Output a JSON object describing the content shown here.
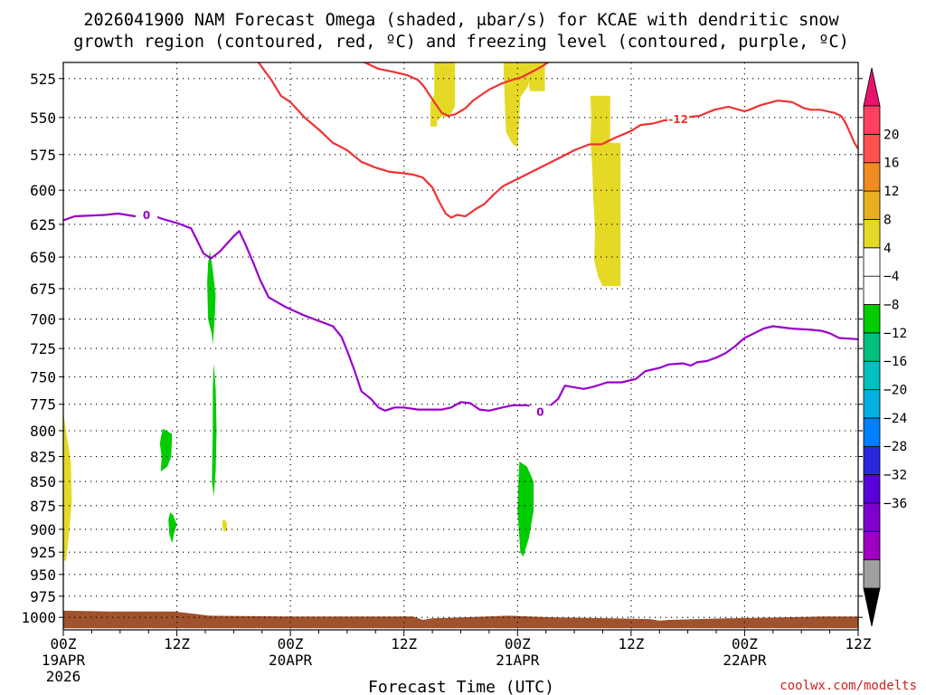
{
  "chart_data": {
    "type": "line",
    "title_line1": "2026041900 NAM Forecast Omega (shaded, μbar/s) for KCAE with dendritic snow",
    "title_line2": "growth region (contoured, red, ºC) and freezing level (contoured, purple, ºC)",
    "xlabel": "Forecast Time (UTC)",
    "credit": "coolwx.com/modelts",
    "x_range_hours": [
      0,
      84
    ],
    "y_range_mb": [
      515,
      1015
    ],
    "y_scale": "log-pressure",
    "grid": true,
    "y_ticks": [
      525,
      550,
      575,
      600,
      625,
      650,
      675,
      700,
      725,
      750,
      775,
      800,
      825,
      850,
      875,
      900,
      925,
      950,
      975,
      1000
    ],
    "x_ticks": [
      {
        "hour": 0,
        "label": "00Z",
        "date": "19APR",
        "year": "2026"
      },
      {
        "hour": 12,
        "label": "12Z",
        "date": "",
        "year": ""
      },
      {
        "hour": 24,
        "label": "00Z",
        "date": "20APR",
        "year": ""
      },
      {
        "hour": 36,
        "label": "12Z",
        "date": "",
        "year": ""
      },
      {
        "hour": 48,
        "label": "00Z",
        "date": "21APR",
        "year": ""
      },
      {
        "hour": 60,
        "label": "12Z",
        "date": "",
        "year": ""
      },
      {
        "hour": 72,
        "label": "00Z",
        "date": "22APR",
        "year": ""
      },
      {
        "hour": 84,
        "label": "12Z",
        "date": "",
        "year": ""
      }
    ],
    "series": [
      {
        "name": "0",
        "color": "#9900cc",
        "label_points": [
          {
            "x": 8.8,
            "y": 618
          },
          {
            "x": 50.4,
            "y": 782
          }
        ],
        "points": [
          [
            0,
            622
          ],
          [
            1.2,
            619
          ],
          [
            4.4,
            618
          ],
          [
            5.8,
            617
          ],
          [
            7.6,
            619
          ],
          [
            9.3,
            618
          ],
          [
            10.5,
            621
          ],
          [
            12,
            624
          ],
          [
            13.5,
            628
          ],
          [
            14.2,
            638
          ],
          [
            14.8,
            647
          ],
          [
            15.6,
            651
          ],
          [
            16.5,
            646
          ],
          [
            18,
            634
          ],
          [
            18.6,
            630
          ],
          [
            19.3,
            641
          ],
          [
            20,
            653
          ],
          [
            20.8,
            668
          ],
          [
            21.7,
            682
          ],
          [
            23.5,
            690
          ],
          [
            25.5,
            697
          ],
          [
            27.5,
            703
          ],
          [
            28.5,
            706
          ],
          [
            29.4,
            715
          ],
          [
            30,
            727
          ],
          [
            30.8,
            745
          ],
          [
            31.5,
            763
          ],
          [
            32.5,
            770
          ],
          [
            33.3,
            778
          ],
          [
            34,
            781
          ],
          [
            35,
            778
          ],
          [
            36,
            778
          ],
          [
            37.5,
            780
          ],
          [
            40,
            780
          ],
          [
            41,
            778
          ],
          [
            42,
            773
          ],
          [
            43,
            774
          ],
          [
            44,
            780
          ],
          [
            45,
            781
          ],
          [
            46.4,
            778
          ],
          [
            47.5,
            776
          ],
          [
            49,
            776
          ],
          [
            50.4,
            778
          ],
          [
            51.5,
            776
          ],
          [
            52.3,
            770
          ],
          [
            53,
            758
          ],
          [
            55,
            761
          ],
          [
            56,
            759
          ],
          [
            57.5,
            755
          ],
          [
            59,
            755
          ],
          [
            60.5,
            752
          ],
          [
            61.5,
            745
          ],
          [
            63,
            742
          ],
          [
            64,
            739
          ],
          [
            65.5,
            738
          ],
          [
            66.3,
            740
          ],
          [
            67,
            737
          ],
          [
            68,
            736
          ],
          [
            69,
            733
          ],
          [
            70,
            729
          ],
          [
            71,
            723
          ],
          [
            72,
            716
          ],
          [
            73,
            712
          ],
          [
            74,
            708
          ],
          [
            75,
            706
          ],
          [
            77,
            708
          ],
          [
            79,
            709
          ],
          [
            80.2,
            710
          ],
          [
            81,
            712
          ],
          [
            82,
            716
          ],
          [
            84,
            717
          ]
        ]
      },
      {
        "name": "-12",
        "color": "#ee3333",
        "label_points": [
          {
            "x": 65.0,
            "y": 551
          }
        ],
        "segments": [
          [
            [
              20.5,
              514
            ],
            [
              22,
              526
            ],
            [
              23,
              536
            ],
            [
              24,
              540
            ],
            [
              25.5,
              550
            ],
            [
              27,
              558
            ],
            [
              28.5,
              567
            ],
            [
              30,
              572
            ],
            [
              31.5,
              580
            ],
            [
              33,
              584
            ],
            [
              34.5,
              587
            ],
            [
              36,
              588
            ],
            [
              37,
              589
            ],
            [
              38,
              591
            ],
            [
              39,
              598
            ],
            [
              39.7,
              608
            ],
            [
              40.4,
              617
            ],
            [
              41,
              620
            ],
            [
              41.6,
              618
            ],
            [
              42.5,
              619
            ],
            [
              43.5,
              614
            ],
            [
              44.5,
              610
            ],
            [
              45.5,
              603
            ],
            [
              46.5,
              597
            ],
            [
              48,
              592
            ],
            [
              49.5,
              587
            ],
            [
              51,
              582
            ],
            [
              52.5,
              577
            ],
            [
              54,
              572
            ],
            [
              55.6,
              568
            ],
            [
              56.9,
              568
            ],
            [
              57.5,
              566
            ],
            [
              58.5,
              563
            ],
            [
              60,
              559
            ],
            [
              61,
              555
            ],
            [
              62.3,
              554
            ],
            [
              63.5,
              552
            ],
            [
              65.7,
              550
            ],
            [
              67.2,
              549
            ],
            [
              68.8,
              545
            ],
            [
              70.3,
              543
            ],
            [
              72,
              546
            ],
            [
              72.5,
              545
            ],
            [
              73.7,
              542
            ],
            [
              75.5,
              539
            ],
            [
              77,
              540
            ],
            [
              78.3,
              544
            ],
            [
              79,
              545
            ],
            [
              80,
              545
            ],
            [
              81.5,
              547
            ],
            [
              82.2,
              549
            ],
            [
              82.7,
              554
            ],
            [
              83.2,
              561
            ],
            [
              83.6,
              567
            ],
            [
              84,
              571
            ]
          ],
          [
            [
              31.5,
              514
            ],
            [
              33.3,
              519
            ],
            [
              35,
              521
            ],
            [
              36.4,
              523
            ],
            [
              37.5,
              526
            ],
            [
              38.1,
              530
            ],
            [
              39.2,
              540
            ],
            [
              40,
              547
            ],
            [
              40.7,
              549
            ],
            [
              41.4,
              548
            ],
            [
              42.5,
              544
            ],
            [
              43.3,
              539
            ],
            [
              45,
              532
            ],
            [
              46.4,
              528
            ],
            [
              47.4,
              526
            ],
            [
              48.5,
              524
            ],
            [
              49.8,
              520
            ],
            [
              50.7,
              517
            ],
            [
              51.5,
              514
            ]
          ]
        ]
      }
    ],
    "shaded_regions": [
      {
        "color": "#e6d926",
        "polygon": [
          [
            0,
            783
          ],
          [
            0.8,
            830
          ],
          [
            0.9,
            870
          ],
          [
            0.6,
            905
          ],
          [
            0.3,
            935
          ],
          [
            0,
            933
          ]
        ]
      },
      {
        "color": "#e6d926",
        "polygon": [
          [
            17.0,
            889
          ],
          [
            17.3,
            893
          ],
          [
            17.3,
            901
          ],
          [
            17.0,
            903
          ],
          [
            16.8,
            897
          ],
          [
            16.8,
            891
          ]
        ]
      },
      {
        "color": "#e6d926",
        "polygon": [
          [
            39.2,
            514
          ],
          [
            41.4,
            514
          ],
          [
            41.4,
            543
          ],
          [
            40.7,
            550
          ],
          [
            40.1,
            549
          ],
          [
            39.5,
            552
          ],
          [
            39.5,
            556
          ],
          [
            38.8,
            556
          ],
          [
            38.8,
            540
          ],
          [
            39.2,
            535
          ]
        ]
      },
      {
        "color": "#e6d926",
        "polygon": [
          [
            46.5,
            514
          ],
          [
            50.0,
            514
          ],
          [
            49.3,
            520
          ],
          [
            49.1,
            530
          ],
          [
            48.3,
            537
          ],
          [
            48.1,
            560
          ],
          [
            48.0,
            570
          ],
          [
            47.5,
            568
          ],
          [
            46.8,
            560
          ],
          [
            46.7,
            548
          ],
          [
            46.6,
            530
          ]
        ]
      },
      {
        "color": "#e6d926",
        "polygon": [
          [
            49.1,
            514
          ],
          [
            50.9,
            514
          ],
          [
            50.9,
            533
          ],
          [
            49.3,
            533
          ],
          [
            49.1,
            525
          ]
        ]
      },
      {
        "color": "#e6d926",
        "polygon": [
          [
            55.7,
            536
          ],
          [
            57.8,
            536
          ],
          [
            57.8,
            567
          ],
          [
            58.9,
            567
          ],
          [
            58.9,
            673
          ],
          [
            57.0,
            673
          ],
          [
            56.5,
            665
          ],
          [
            56.1,
            652
          ],
          [
            56.2,
            630
          ],
          [
            56.0,
            605
          ],
          [
            55.9,
            585
          ],
          [
            55.7,
            565
          ],
          [
            55.8,
            550
          ]
        ]
      },
      {
        "color": "#00cc00",
        "polygon": [
          [
            15.5,
            645
          ],
          [
            15.8,
            660
          ],
          [
            16.1,
            680
          ],
          [
            16.0,
            700
          ],
          [
            15.8,
            722
          ],
          [
            15.7,
            713
          ],
          [
            15.3,
            700
          ],
          [
            15.2,
            670
          ],
          [
            15.3,
            655
          ]
        ]
      },
      {
        "color": "#00cc00",
        "polygon": [
          [
            15.9,
            738
          ],
          [
            16.1,
            760
          ],
          [
            16.2,
            800
          ],
          [
            16.1,
            840
          ],
          [
            15.9,
            865
          ],
          [
            15.7,
            850
          ],
          [
            15.8,
            800
          ],
          [
            15.8,
            760
          ]
        ]
      },
      {
        "color": "#00cc00",
        "polygon": [
          [
            10.5,
            798
          ],
          [
            11.5,
            803
          ],
          [
            11.4,
            825
          ],
          [
            11.0,
            835
          ],
          [
            10.3,
            840
          ],
          [
            10.4,
            825
          ],
          [
            10.2,
            812
          ]
        ]
      },
      {
        "color": "#00cc00",
        "polygon": [
          [
            11.3,
            882
          ],
          [
            11.6,
            885
          ],
          [
            12.0,
            895
          ],
          [
            11.7,
            905
          ],
          [
            11.5,
            915
          ],
          [
            11.2,
            905
          ],
          [
            11.1,
            890
          ]
        ]
      },
      {
        "color": "#00cc00",
        "polygon": [
          [
            48.2,
            830
          ],
          [
            49.0,
            835
          ],
          [
            49.7,
            850
          ],
          [
            49.7,
            880
          ],
          [
            49.2,
            910
          ],
          [
            48.6,
            930
          ],
          [
            48.3,
            925
          ],
          [
            48.0,
            880
          ],
          [
            48.1,
            850
          ]
        ]
      }
    ],
    "terrain": {
      "color": "#a0522d",
      "top_points": [
        [
          0,
          992
        ],
        [
          5,
          993
        ],
        [
          11.8,
          993
        ],
        [
          15.5,
          998
        ],
        [
          24,
          999
        ],
        [
          37,
          999
        ],
        [
          38,
          1003
        ],
        [
          39,
          1001
        ],
        [
          42,
          1000
        ],
        [
          47,
          998
        ],
        [
          52,
          1000
        ],
        [
          58,
          1001
        ],
        [
          62,
          1002
        ],
        [
          63,
          1004
        ],
        [
          64,
          1003
        ],
        [
          70,
          1001
        ],
        [
          76,
          1000
        ],
        [
          80,
          999
        ],
        [
          84,
          999
        ]
      ],
      "bottom_mb": 1013
    },
    "colorbar": {
      "colors": [
        "#000000",
        "#a0a0a0",
        "#a000c0",
        "#7d00d0",
        "#5a00d8",
        "#2828e0",
        "#0080ff",
        "#00b0e0",
        "#00c0c0",
        "#00c080",
        "#00cc00",
        "#ffffff",
        "#ffffff",
        "#e6d926",
        "#e6b020",
        "#f08c20",
        "#ff5050",
        "#ff4060",
        "#e8146c"
      ],
      "labels": [
        "20",
        "16",
        "12",
        "8",
        "4",
        "−4",
        "−8",
        "−12",
        "−16",
        "−20",
        "−24",
        "−28",
        "−32",
        "−36"
      ]
    }
  }
}
